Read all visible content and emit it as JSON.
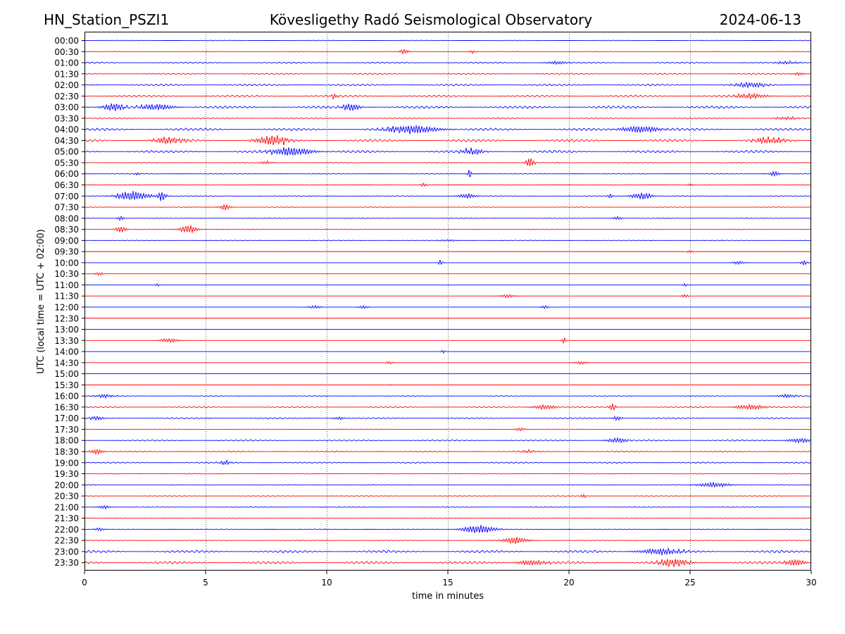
{
  "chart_data": {
    "type": "line",
    "title_left": "HN_Station_PSZI1",
    "title_center": "Kövesligethy Radó Seismological Observatory",
    "title_right": "2024-06-13",
    "xlabel": "time in minutes",
    "ylabel": "UTC (local time = UTC + 02:00)",
    "xlim": [
      0,
      30
    ],
    "x_ticks": [
      0,
      5,
      10,
      15,
      20,
      25,
      30
    ],
    "vertical_gridlines": [
      5,
      10,
      15,
      20,
      25
    ],
    "colors": {
      "even_row": "#0000ff",
      "odd_row": "#ff0000",
      "grid": "#000000",
      "axis": "#000000"
    },
    "rows": [
      {
        "label": "00:00",
        "level": 1,
        "events": []
      },
      {
        "label": "00:30",
        "level": 1,
        "events": [
          {
            "t": 13.2,
            "amp": 3,
            "dur": 0.4
          },
          {
            "t": 16.0,
            "amp": 2,
            "dur": 0.3
          }
        ]
      },
      {
        "label": "01:00",
        "level": 2,
        "events": [
          {
            "t": 19.5,
            "amp": 2,
            "dur": 1.0
          },
          {
            "t": 29.0,
            "amp": 2,
            "dur": 1.0
          }
        ]
      },
      {
        "label": "01:30",
        "level": 2,
        "events": [
          {
            "t": 29.5,
            "amp": 2,
            "dur": 0.5
          }
        ]
      },
      {
        "label": "02:00",
        "level": 3,
        "events": [
          {
            "t": 27.5,
            "amp": 3,
            "dur": 1.5
          }
        ]
      },
      {
        "label": "02:30",
        "level": 3,
        "events": [
          {
            "t": 10.3,
            "amp": 3,
            "dur": 0.3
          },
          {
            "t": 27.5,
            "amp": 3,
            "dur": 1.5
          }
        ]
      },
      {
        "label": "03:00",
        "level": 4,
        "events": [
          {
            "t": 1.2,
            "amp": 5,
            "dur": 1.0
          },
          {
            "t": 3.0,
            "amp": 4,
            "dur": 1.5
          },
          {
            "t": 11.0,
            "amp": 5,
            "dur": 0.8
          }
        ]
      },
      {
        "label": "03:30",
        "level": 2,
        "events": [
          {
            "t": 29.0,
            "amp": 2,
            "dur": 1.0
          }
        ]
      },
      {
        "label": "04:00",
        "level": 4,
        "events": [
          {
            "t": 13.5,
            "amp": 5,
            "dur": 2.5
          },
          {
            "t": 23.0,
            "amp": 4,
            "dur": 2.0
          }
        ]
      },
      {
        "label": "04:30",
        "level": 4,
        "events": [
          {
            "t": 3.5,
            "amp": 4,
            "dur": 1.5
          },
          {
            "t": 7.8,
            "amp": 6,
            "dur": 1.5
          },
          {
            "t": 28.3,
            "amp": 4,
            "dur": 1.5
          }
        ]
      },
      {
        "label": "05:00",
        "level": 4,
        "events": [
          {
            "t": 8.5,
            "amp": 5,
            "dur": 2.0
          },
          {
            "t": 16.0,
            "amp": 4,
            "dur": 1.0
          }
        ]
      },
      {
        "label": "05:30",
        "level": 1,
        "events": [
          {
            "t": 7.5,
            "amp": 2,
            "dur": 0.5
          },
          {
            "t": 18.4,
            "amp": 6,
            "dur": 0.4
          }
        ]
      },
      {
        "label": "06:00",
        "level": 1,
        "events": [
          {
            "t": 2.2,
            "amp": 2,
            "dur": 0.3
          },
          {
            "t": 15.9,
            "amp": 8,
            "dur": 0.15
          },
          {
            "t": 28.5,
            "amp": 3,
            "dur": 0.5
          }
        ]
      },
      {
        "label": "06:30",
        "level": 1,
        "events": [
          {
            "t": 14.0,
            "amp": 3,
            "dur": 0.3
          },
          {
            "t": 25.0,
            "amp": 2,
            "dur": 0.3
          }
        ]
      },
      {
        "label": "07:00",
        "level": 1,
        "events": [
          {
            "t": 2.0,
            "amp": 6,
            "dur": 1.5
          },
          {
            "t": 3.2,
            "amp": 6,
            "dur": 0.4
          },
          {
            "t": 15.8,
            "amp": 3,
            "dur": 0.8
          },
          {
            "t": 21.7,
            "amp": 4,
            "dur": 0.2
          },
          {
            "t": 23.0,
            "amp": 4,
            "dur": 1.0
          }
        ]
      },
      {
        "label": "07:30",
        "level": 1,
        "events": [
          {
            "t": 5.8,
            "amp": 4,
            "dur": 0.5
          }
        ]
      },
      {
        "label": "08:00",
        "level": 1,
        "events": [
          {
            "t": 1.5,
            "amp": 3,
            "dur": 0.3
          },
          {
            "t": 22.0,
            "amp": 2,
            "dur": 0.5
          }
        ]
      },
      {
        "label": "08:30",
        "level": 1,
        "events": [
          {
            "t": 1.5,
            "amp": 4,
            "dur": 0.5
          },
          {
            "t": 4.3,
            "amp": 5,
            "dur": 0.8
          }
        ]
      },
      {
        "label": "09:00",
        "level": 1,
        "events": [
          {
            "t": 15.0,
            "amp": 1,
            "dur": 1.0
          }
        ]
      },
      {
        "label": "09:30",
        "level": 0,
        "events": [
          {
            "t": 25.0,
            "amp": 2,
            "dur": 0.3
          }
        ]
      },
      {
        "label": "10:00",
        "level": 0,
        "events": [
          {
            "t": 14.7,
            "amp": 4,
            "dur": 0.2
          },
          {
            "t": 27.0,
            "amp": 2,
            "dur": 0.6
          },
          {
            "t": 29.7,
            "amp": 3,
            "dur": 0.3
          }
        ]
      },
      {
        "label": "10:30",
        "level": 0,
        "events": [
          {
            "t": 0.6,
            "amp": 2,
            "dur": 0.4
          }
        ]
      },
      {
        "label": "11:00",
        "level": 0,
        "events": [
          {
            "t": 3.0,
            "amp": 2,
            "dur": 0.2
          },
          {
            "t": 24.8,
            "amp": 2,
            "dur": 0.2
          }
        ]
      },
      {
        "label": "11:30",
        "level": 0,
        "events": [
          {
            "t": 17.5,
            "amp": 2,
            "dur": 0.8
          },
          {
            "t": 24.8,
            "amp": 2,
            "dur": 0.4
          }
        ]
      },
      {
        "label": "12:00",
        "level": 0,
        "events": [
          {
            "t": 9.5,
            "amp": 2,
            "dur": 0.6
          },
          {
            "t": 11.5,
            "amp": 2,
            "dur": 0.5
          },
          {
            "t": 19.0,
            "amp": 2,
            "dur": 0.4
          }
        ]
      },
      {
        "label": "12:30",
        "level": 0,
        "events": []
      },
      {
        "label": "13:00",
        "level": 0,
        "events": []
      },
      {
        "label": "13:30",
        "level": 0,
        "events": [
          {
            "t": 3.5,
            "amp": 3,
            "dur": 0.8
          },
          {
            "t": 19.8,
            "amp": 4,
            "dur": 0.2
          }
        ]
      },
      {
        "label": "14:00",
        "level": 0,
        "events": [
          {
            "t": 14.8,
            "amp": 2,
            "dur": 0.2
          }
        ]
      },
      {
        "label": "14:30",
        "level": 0,
        "events": [
          {
            "t": 12.6,
            "amp": 2,
            "dur": 0.3
          },
          {
            "t": 20.5,
            "amp": 2,
            "dur": 0.6
          }
        ]
      },
      {
        "label": "15:00",
        "level": 0,
        "events": []
      },
      {
        "label": "15:30",
        "level": 0,
        "events": [
          {
            "t": 12.6,
            "amp": 1,
            "dur": 0.3
          }
        ]
      },
      {
        "label": "16:00",
        "level": 1,
        "events": [
          {
            "t": 0.8,
            "amp": 2,
            "dur": 1.0
          },
          {
            "t": 29.0,
            "amp": 2,
            "dur": 1.0
          }
        ]
      },
      {
        "label": "16:30",
        "level": 2,
        "events": [
          {
            "t": 19.0,
            "amp": 3,
            "dur": 1.0
          },
          {
            "t": 21.8,
            "amp": 5,
            "dur": 0.3
          },
          {
            "t": 27.5,
            "amp": 3,
            "dur": 1.5
          }
        ]
      },
      {
        "label": "17:00",
        "level": 2,
        "events": [
          {
            "t": 0.5,
            "amp": 3,
            "dur": 0.6
          },
          {
            "t": 10.5,
            "amp": 2,
            "dur": 0.5
          },
          {
            "t": 22.0,
            "amp": 3,
            "dur": 0.4
          }
        ]
      },
      {
        "label": "17:30",
        "level": 1,
        "events": [
          {
            "t": 18.0,
            "amp": 2,
            "dur": 0.5
          }
        ]
      },
      {
        "label": "18:00",
        "level": 2,
        "events": [
          {
            "t": 22.0,
            "amp": 3,
            "dur": 1.0
          },
          {
            "t": 29.5,
            "amp": 3,
            "dur": 1.0
          }
        ]
      },
      {
        "label": "18:30",
        "level": 2,
        "events": [
          {
            "t": 0.5,
            "amp": 3,
            "dur": 0.6
          },
          {
            "t": 18.3,
            "amp": 2,
            "dur": 0.6
          }
        ]
      },
      {
        "label": "19:00",
        "level": 2,
        "events": [
          {
            "t": 5.8,
            "amp": 3,
            "dur": 0.5
          }
        ]
      },
      {
        "label": "19:30",
        "level": 1,
        "events": []
      },
      {
        "label": "20:00",
        "level": 1,
        "events": [
          {
            "t": 26.0,
            "amp": 3,
            "dur": 1.5
          }
        ]
      },
      {
        "label": "20:30",
        "level": 1,
        "events": [
          {
            "t": 20.6,
            "amp": 3,
            "dur": 0.2
          }
        ]
      },
      {
        "label": "21:00",
        "level": 1,
        "events": [
          {
            "t": 0.8,
            "amp": 2,
            "dur": 0.6
          }
        ]
      },
      {
        "label": "21:30",
        "level": 1,
        "events": []
      },
      {
        "label": "22:00",
        "level": 1,
        "events": [
          {
            "t": 0.6,
            "amp": 2,
            "dur": 0.5
          },
          {
            "t": 16.3,
            "amp": 5,
            "dur": 1.5
          }
        ]
      },
      {
        "label": "22:30",
        "level": 1,
        "events": [
          {
            "t": 17.8,
            "amp": 4,
            "dur": 1.2
          }
        ]
      },
      {
        "label": "23:00",
        "level": 4,
        "events": [
          {
            "t": 23.8,
            "amp": 4,
            "dur": 2.0
          }
        ]
      },
      {
        "label": "23:30",
        "level": 4,
        "events": [
          {
            "t": 18.5,
            "amp": 3,
            "dur": 1.5
          },
          {
            "t": 24.3,
            "amp": 5,
            "dur": 1.5
          },
          {
            "t": 29.3,
            "amp": 4,
            "dur": 1.0
          }
        ]
      }
    ]
  }
}
